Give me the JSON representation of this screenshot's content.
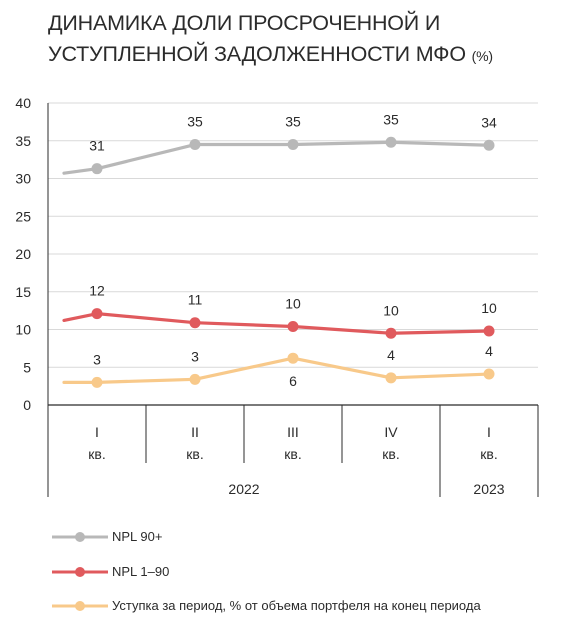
{
  "title": {
    "text": "ДИНАМИКА ДОЛИ ПРОСРОЧЕННОЙ И УСТУПЛЕННОЙ ЗАДОЛЖЕННОСТИ МФО",
    "unit": "(%)"
  },
  "chart_data": {
    "type": "line",
    "categories": [
      "I кв.",
      "II кв.",
      "III кв.",
      "IV кв.",
      "I кв."
    ],
    "category_lines": [
      [
        "I",
        "кв."
      ],
      [
        "II",
        "кв."
      ],
      [
        "III",
        "кв."
      ],
      [
        "IV",
        "кв."
      ],
      [
        "I",
        "кв."
      ]
    ],
    "year_groups": [
      {
        "label": "2022",
        "span": [
          0,
          3
        ]
      },
      {
        "label": "2023",
        "span": [
          4,
          4
        ]
      }
    ],
    "ylim": [
      0,
      40
    ],
    "yticks": [
      "0",
      "5",
      "10",
      "15",
      "20",
      "25",
      "30",
      "35",
      "40"
    ],
    "grid": true,
    "legend_position": "bottom",
    "series": [
      {
        "name": "NPL 90+",
        "color": "#b8b8b8",
        "start_value": 30.7,
        "values": [
          31.3,
          34.5,
          34.5,
          34.8,
          34.4
        ],
        "labels": [
          "31",
          "35",
          "35",
          "35",
          "34"
        ],
        "label_side": [
          "above",
          "above",
          "above",
          "above",
          "above"
        ]
      },
      {
        "name": "NPL 1–90",
        "color": "#e05a5d",
        "start_value": 11.2,
        "values": [
          12.1,
          10.9,
          10.4,
          9.5,
          9.8
        ],
        "labels": [
          "12",
          "11",
          "10",
          "10",
          "10"
        ],
        "label_side": [
          "above",
          "above",
          "above",
          "above",
          "above"
        ]
      },
      {
        "name": "Уступка за период, % от объема портфеля на конец периода",
        "color": "#f8c98a",
        "start_value": 3.0,
        "values": [
          3.0,
          3.4,
          6.2,
          3.6,
          4.1
        ],
        "labels": [
          "3",
          "3",
          "6",
          "4",
          "4"
        ],
        "label_side": [
          "above",
          "above",
          "below",
          "above",
          "above"
        ]
      }
    ]
  }
}
